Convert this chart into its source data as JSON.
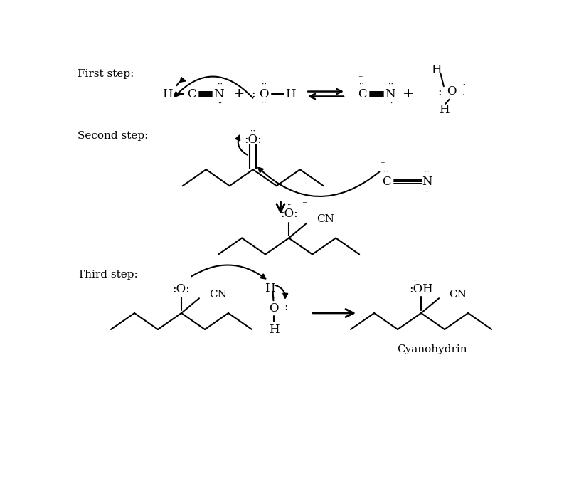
{
  "bg_color": "#ffffff",
  "figsize": [
    8.0,
    6.83
  ],
  "dpi": 100,
  "xlim": [
    0,
    8
  ],
  "ylim": [
    0,
    6.83
  ]
}
